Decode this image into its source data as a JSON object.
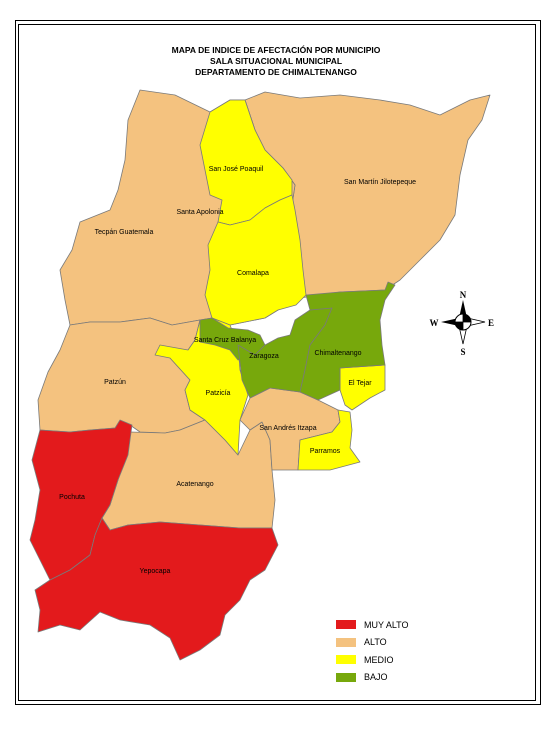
{
  "title": {
    "line1": "MAPA DE INDICE DE AFECTACIÓN POR MUNICIPIO",
    "line2": "SALA SITUACIONAL MUNICIPAL",
    "line3": "DEPARTAMENTO DE CHIMALTENANGO"
  },
  "colors": {
    "muy_alto": "#e31a1c",
    "alto": "#f4c27f",
    "medio": "#ffff00",
    "bajo": "#77a80c",
    "border": "#7a7a7a"
  },
  "municipalities": {
    "san_jose_poaquil": "San José Poaquil",
    "san_martin_jilotepeque": "San Martín Jilotepeque",
    "santa_apolonia": "Santa Apolonia",
    "tecpan_guatemala": "Tecpán Guatemala",
    "comalapa": "Comalapa",
    "santa_cruz_balanya": "Santa Cruz Balanya",
    "zaragoza": "Zaragoza",
    "chimaltenango": "Chimaltenango",
    "patzun": "Patzún",
    "patzicia": "Patzicía",
    "el_tejar": "El Tejar",
    "san_andres_itzapa": "San Andrés Itzapa",
    "parramos": "Parramos",
    "pochuta": "Pochuta",
    "acatenango": "Acatenango",
    "yepocapa": "Yepocapa"
  },
  "compass": {
    "n": "N",
    "s": "S",
    "e": "E",
    "w": "W"
  },
  "legend": [
    {
      "label": "MUY ALTO",
      "color": "#e31a1c"
    },
    {
      "label": "ALTO",
      "color": "#f4c27f"
    },
    {
      "label": "MEDIO",
      "color": "#ffff00"
    },
    {
      "label": "BAJO",
      "color": "#77a80c"
    }
  ]
}
